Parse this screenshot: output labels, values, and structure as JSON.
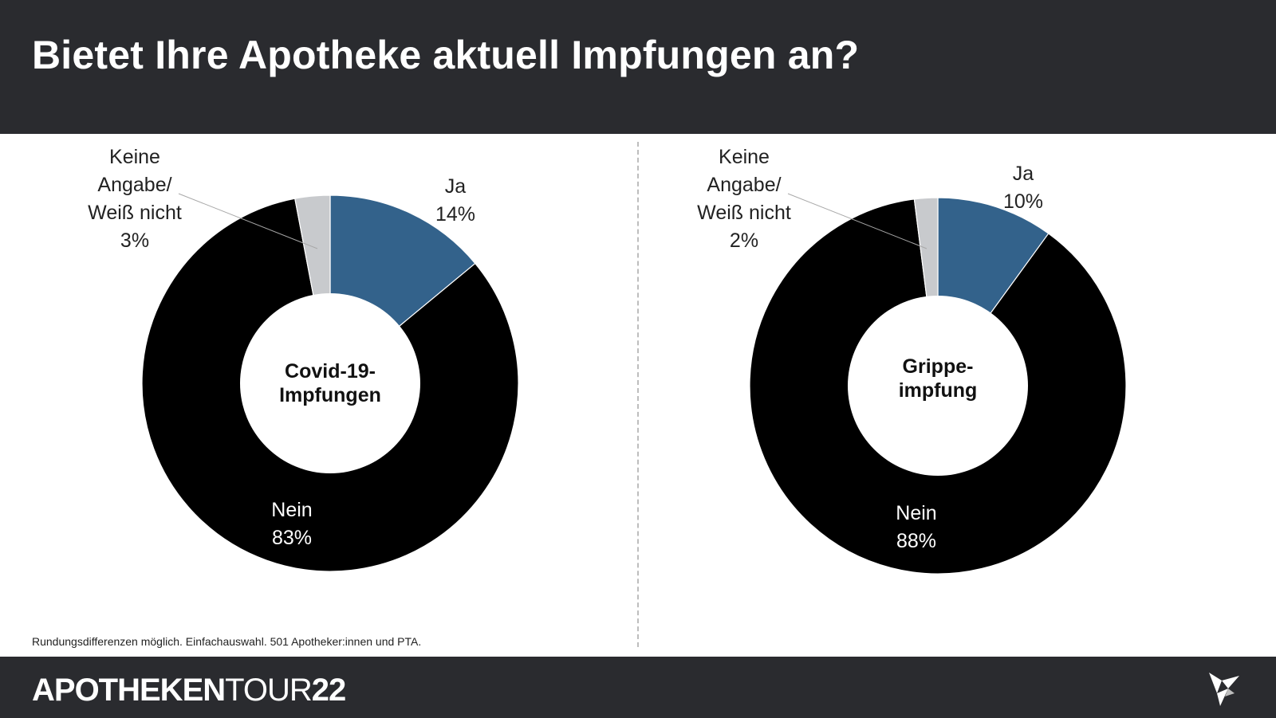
{
  "header": {
    "title": "Bietet Ihre Apotheke aktuell Impfungen an?"
  },
  "footnote": "Rundungsdifferenzen möglich. Einfachauswahl. 501 Apotheker:innen und PTA.",
  "footer": {
    "brand_part1": "APOTHEKEN",
    "brand_part2": "TOUR",
    "brand_part3": "22",
    "logo_icon": "origami-bird-icon"
  },
  "colors": {
    "ja": "#33628b",
    "nein": "#000000",
    "keine": "#c8cacd",
    "header_bg": "#2a2b2f"
  },
  "chart_data": [
    {
      "type": "pie",
      "center_label": [
        "Covid-19-",
        "Impfungen"
      ],
      "categories": [
        "Ja",
        "Nein",
        "Keine Angabe/ Weiß nicht"
      ],
      "values": [
        14,
        83,
        3
      ],
      "labels": [
        {
          "lines": [
            "Ja",
            "14%"
          ]
        },
        {
          "lines": [
            "Nein",
            "83%"
          ]
        },
        {
          "lines": [
            "Keine",
            "Angabe/",
            "Weiß nicht",
            "3%"
          ]
        }
      ]
    },
    {
      "type": "pie",
      "center_label": [
        "Grippe-",
        "impfung"
      ],
      "categories": [
        "Ja",
        "Nein",
        "Keine Angabe/ Weiß nicht"
      ],
      "values": [
        10,
        88,
        2
      ],
      "labels": [
        {
          "lines": [
            "Ja",
            "10%"
          ]
        },
        {
          "lines": [
            "Nein",
            "88%"
          ]
        },
        {
          "lines": [
            "Keine",
            "Angabe/",
            "Weiß nicht",
            "2%"
          ]
        }
      ]
    }
  ]
}
